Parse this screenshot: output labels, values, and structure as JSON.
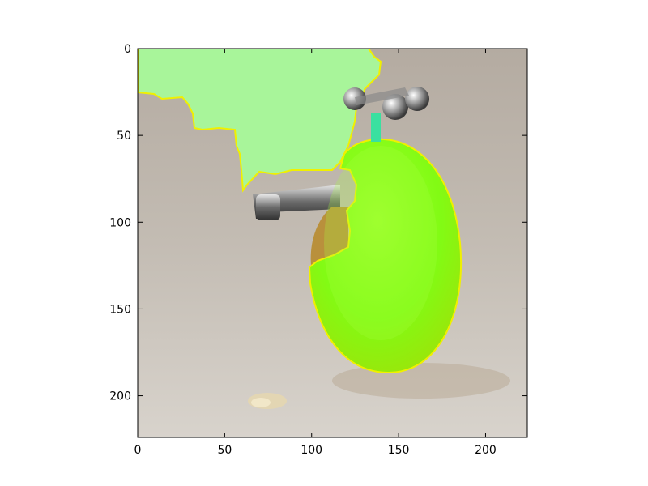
{
  "figure": {
    "background": "#ffffff",
    "x_ticks": [
      "0",
      "50",
      "100",
      "150",
      "200"
    ],
    "y_ticks": [
      "0",
      "50",
      "100",
      "150",
      "200"
    ],
    "x_range": [
      0,
      224
    ],
    "y_range": [
      0,
      224
    ],
    "y_axis_inverted": true
  },
  "image": {
    "background_color": "#bdb6ad",
    "mask_color": "#7fff10",
    "mask_light_color": "#a8f59a",
    "mask_outline_color": "#f0f000",
    "fruit_color": "#b9903c"
  }
}
